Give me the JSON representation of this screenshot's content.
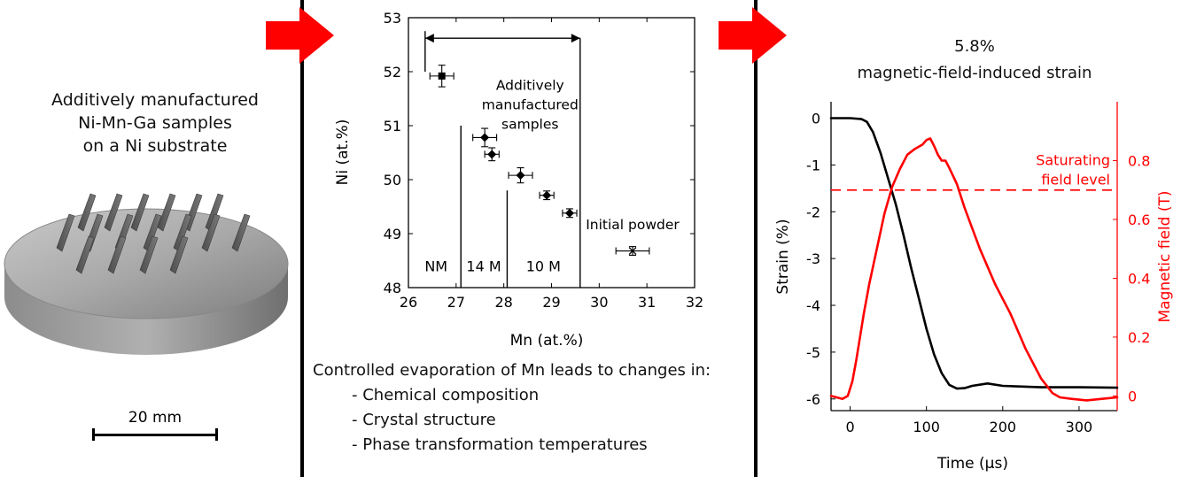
{
  "left_panel": {
    "caption_lines": [
      "Additively manufactured",
      "Ni-Mn-Ga samples",
      "on a Ni substrate"
    ],
    "scale_bar_label": "20 mm"
  },
  "middle_panel": {
    "notes": {
      "heading": "Controlled evaporation of Mn leads to changes in:",
      "items": [
        "- Chemical composition",
        "- Crystal structure",
        "- Phase transformation temperatures"
      ]
    }
  },
  "right_panel": {
    "title_lines": [
      "5.8%",
      "magnetic-field-induced strain"
    ]
  },
  "colors": {
    "arrow": "#ff0000",
    "strain_curve": "#000000",
    "field_curve": "#ff0000"
  },
  "chart_data": [
    {
      "type": "scatter",
      "xlabel": "Mn (at.%)",
      "ylabel": "Ni (at.%)",
      "xlim": [
        26,
        32
      ],
      "ylim": [
        48,
        53
      ],
      "xticks": [
        "26",
        "27",
        "28",
        "29",
        "30",
        "31",
        "32"
      ],
      "yticks": [
        "48",
        "49",
        "50",
        "51",
        "52",
        "53"
      ],
      "series": [
        {
          "name": "Additively manufactured samples",
          "points": [
            {
              "x": 26.7,
              "y": 51.92,
              "xerr": 0.25,
              "yerr": 0.2,
              "marker": "square"
            },
            {
              "x": 27.6,
              "y": 50.78,
              "xerr": 0.25,
              "yerr": 0.17,
              "marker": "diamond"
            },
            {
              "x": 27.75,
              "y": 50.47,
              "xerr": 0.15,
              "yerr": 0.12,
              "marker": "diamond"
            },
            {
              "x": 28.35,
              "y": 50.08,
              "xerr": 0.25,
              "yerr": 0.14,
              "marker": "diamond"
            },
            {
              "x": 28.9,
              "y": 49.71,
              "xerr": 0.15,
              "yerr": 0.08,
              "marker": "diamond"
            },
            {
              "x": 29.38,
              "y": 49.38,
              "xerr": 0.15,
              "yerr": 0.08,
              "marker": "diamond"
            }
          ]
        },
        {
          "name": "Initial powder",
          "points": [
            {
              "x": 30.7,
              "y": 48.68,
              "xerr": 0.35,
              "yerr": 0.08,
              "marker": "cross"
            }
          ]
        }
      ],
      "phase_boundaries_x": [
        27.1,
        28.07,
        29.6
      ],
      "phase_labels": [
        {
          "text": "NM",
          "x": 26.58,
          "y": 48.4
        },
        {
          "text": "14 M",
          "x": 27.58,
          "y": 48.4
        },
        {
          "text": "10 M",
          "x": 28.83,
          "y": 48.4
        }
      ],
      "range_arrow": {
        "x_start": 26.35,
        "x_end": 29.6,
        "y": 52.62
      },
      "annotations": [
        {
          "lines": [
            "Additively",
            "manufactured",
            "samples"
          ],
          "x": 28.55,
          "y": 51.66
        },
        {
          "lines": [
            "Initial powder"
          ],
          "x": 30.7,
          "y": 49.08
        }
      ]
    },
    {
      "type": "line",
      "xlabel": "Time (μs)",
      "ylabel": "Strain (%)",
      "y2label": "Magnetic field (T)",
      "xlim": [
        -25,
        350
      ],
      "ylim": [
        -6.25,
        0.35
      ],
      "y2lim": [
        -0.05,
        1.0
      ],
      "xticks": [
        "0",
        "100",
        "200",
        "300"
      ],
      "yticks": [
        "0",
        "-1",
        "-2",
        "-3",
        "-4",
        "-5",
        "-6"
      ],
      "y2ticks": [
        "0",
        "0.2",
        "0.4",
        "0.6",
        "0.8"
      ],
      "series": [
        {
          "name": "Strain",
          "axis": "left",
          "color": "#000000",
          "x": [
            -25,
            0,
            15,
            22,
            30,
            40,
            50,
            60,
            70,
            80,
            90,
            100,
            110,
            120,
            130,
            140,
            150,
            160,
            180,
            200,
            250,
            300,
            350
          ],
          "y": [
            0,
            0,
            -0.02,
            -0.08,
            -0.3,
            -0.75,
            -1.3,
            -1.85,
            -2.5,
            -3.2,
            -3.85,
            -4.5,
            -5.05,
            -5.45,
            -5.7,
            -5.78,
            -5.77,
            -5.72,
            -5.67,
            -5.72,
            -5.75,
            -5.75,
            -5.76
          ]
        },
        {
          "name": "Magnetic field",
          "axis": "right",
          "color": "#ff0000",
          "x": [
            -25,
            -10,
            -3,
            3,
            8,
            13,
            18,
            25,
            35,
            45,
            55,
            65,
            75,
            85,
            95,
            100,
            105,
            110,
            115,
            120,
            125,
            130,
            140,
            150,
            170,
            190,
            210,
            230,
            250,
            265,
            275,
            290,
            310,
            330,
            350
          ],
          "y": [
            0.0,
            -0.01,
            0.0,
            0.05,
            0.12,
            0.2,
            0.28,
            0.38,
            0.5,
            0.62,
            0.71,
            0.77,
            0.82,
            0.84,
            0.855,
            0.87,
            0.875,
            0.85,
            0.82,
            0.8,
            0.8,
            0.775,
            0.72,
            0.64,
            0.5,
            0.38,
            0.28,
            0.16,
            0.06,
            0.01,
            -0.005,
            -0.01,
            -0.015,
            -0.01,
            -0.005
          ]
        }
      ],
      "reference_line": {
        "y2": 0.7,
        "color": "#ff0000",
        "label_lines": [
          "Saturating",
          "field level"
        ]
      }
    }
  ]
}
